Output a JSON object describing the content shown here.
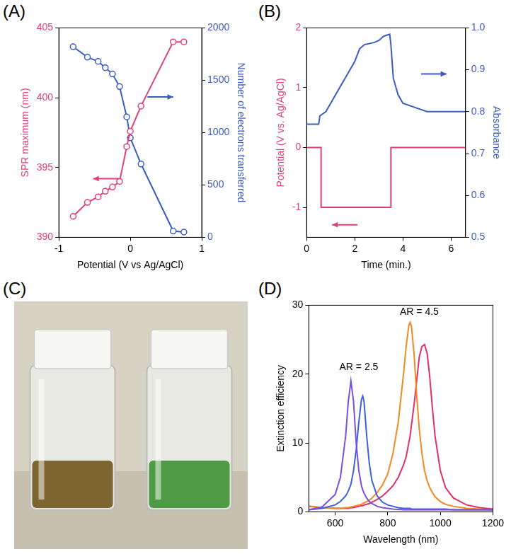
{
  "chart_data": [
    {
      "type": "line",
      "title": "(A)",
      "x_label": "Potential (V vs Ag/AgCl)",
      "y_label": "SPR maximum (nm)",
      "y2_label": "Number of electrons transferred",
      "x": [
        -0.8,
        -0.6,
        -0.45,
        -0.35,
        -0.25,
        -0.15,
        -0.05,
        0,
        0.15,
        0.6,
        0.75
      ],
      "xlim": [
        -1,
        1
      ],
      "xticks": [
        -1,
        0,
        1
      ],
      "ylim": [
        390,
        405
      ],
      "yticks": [
        390,
        395,
        400,
        405
      ],
      "y2lim": [
        0,
        2000
      ],
      "y2ticks": [
        0,
        500,
        1000,
        1500,
        2000
      ],
      "grid": false,
      "series": [
        {
          "color": "#e0407a",
          "marker": "circle",
          "values": [
            391.5,
            392.5,
            392.9,
            393.3,
            393.6,
            394,
            396.5,
            397.6,
            399.4,
            404,
            404
          ]
        },
        {
          "color": "#3c5bbf",
          "marker": "circle",
          "axis": "y2",
          "values": [
            1820,
            1720,
            1680,
            1620,
            1560,
            1440,
            1150,
            950,
            700,
            60,
            50
          ]
        }
      ]
    },
    {
      "type": "line",
      "title": "(B)",
      "x_label": "Time (min.)",
      "y_label": "Potential (V vs. Ag/AgCl)",
      "y2_label": "Absorbance",
      "xlim": [
        0,
        6.6
      ],
      "xticks": [
        0,
        2,
        4,
        6
      ],
      "ylim": [
        -1.5,
        2
      ],
      "yticks": [
        -1,
        0,
        1,
        2
      ],
      "y2lim": [
        0.5,
        1
      ],
      "y2ticks": [
        0.5,
        0.6,
        0.7,
        0.8,
        0.9,
        {
          "value": 1,
          "label": "1.0"
        }
      ],
      "grid": false,
      "series": [
        {
          "color": "#e0407a",
          "marker": "none",
          "line_style": "solid",
          "x": [
            0,
            0.6,
            0.6,
            3.5,
            3.5,
            6.6
          ],
          "values": [
            0,
            0,
            -1,
            -1,
            0,
            0
          ]
        },
        {
          "color": "#3c5bbf",
          "marker": "none",
          "line_style": "solid",
          "axis": "y2",
          "x": [
            0,
            0.5,
            0.55,
            0.8,
            1.2,
            1.6,
            2.0,
            2.2,
            2.4,
            2.8,
            3.0,
            3.2,
            3.45,
            3.5,
            3.6,
            3.8,
            4.0,
            4.5,
            5.0,
            6.6
          ],
          "values": [
            0.77,
            0.77,
            0.79,
            0.8,
            0.84,
            0.88,
            0.92,
            0.95,
            0.96,
            0.965,
            0.97,
            0.98,
            0.985,
            0.96,
            0.88,
            0.84,
            0.82,
            0.81,
            0.8,
            0.8
          ]
        }
      ]
    },
    {
      "type": "line",
      "title": "(D)",
      "x_label": "Wavelength (nm)",
      "y_label": "Extinction efficiency",
      "x": [
        500,
        550,
        600,
        620,
        640,
        650,
        660,
        670,
        680,
        690,
        700,
        705,
        710,
        720,
        730,
        740,
        760,
        780,
        800,
        820,
        840,
        860,
        870,
        880,
        885,
        890,
        900,
        910,
        920,
        930,
        940,
        950,
        960,
        970,
        980,
        1000,
        1020,
        1050,
        1100,
        1150,
        1200
      ],
      "xlim": [
        500,
        1200
      ],
      "xticks": [
        600,
        800,
        1000,
        1200
      ],
      "ylim": [
        0,
        30
      ],
      "yticks": [
        0,
        10,
        20,
        30
      ],
      "grid": false,
      "annotations": [
        {
          "text": "AR = 2.5",
          "x": 690,
          "y": 21
        },
        {
          "text": "AR = 4.5",
          "x": 920,
          "y": 29
        }
      ],
      "series": [
        {
          "color": "#7b4fe0",
          "marker": "none",
          "values": [
            0.3,
            0.7,
            2.5,
            5,
            11,
            16,
            19,
            16,
            10,
            6,
            3.8,
            3.2,
            2.7,
            2,
            1.5,
            1.2,
            0.8,
            0.6,
            0.5,
            0.4,
            0.35,
            0.3,
            0.3,
            0.3,
            0.3,
            0.3,
            0.3,
            0.3,
            0.3,
            0.3,
            0.3,
            0.3,
            0.3,
            0.3,
            0.3,
            0.3,
            0.3,
            0.3,
            0.3,
            0.3,
            0.3
          ]
        },
        {
          "color": "#3f5fe0",
          "marker": "none",
          "values": [
            0.3,
            0.5,
            1,
            1.5,
            2.3,
            3,
            4,
            6,
            9,
            13,
            16.3,
            16.8,
            16,
            11,
            7,
            4.5,
            2.3,
            1.4,
            1,
            0.8,
            0.6,
            0.5,
            0.5,
            0.5,
            0.5,
            0.4,
            0.4,
            0.4,
            0.4,
            0.4,
            0.4,
            0.4,
            0.4,
            0.4,
            0.4,
            0.4,
            0.4,
            0.3,
            0.3,
            0.3,
            0.3
          ]
        },
        {
          "color": "#f08a24",
          "marker": "none",
          "values": [
            0.8,
            0.6,
            0.5,
            0.5,
            0.6,
            0.6,
            0.7,
            0.8,
            0.9,
            1,
            1.1,
            1.2,
            1.3,
            1.5,
            1.7,
            2,
            2.8,
            3.9,
            5.5,
            8.5,
            13,
            20,
            24,
            27,
            27.5,
            27,
            23,
            17,
            12,
            8.5,
            6,
            4.5,
            3.5,
            2.8,
            2.2,
            1.5,
            1.1,
            0.8,
            0.5,
            0.4,
            0.3
          ]
        },
        {
          "color": "#e0306a",
          "marker": "none",
          "values": [
            0.8,
            0.6,
            0.5,
            0.5,
            0.5,
            0.5,
            0.6,
            0.6,
            0.7,
            0.8,
            0.9,
            0.9,
            1,
            1.1,
            1.2,
            1.4,
            1.8,
            2.3,
            3,
            3.8,
            5,
            6.8,
            8,
            10,
            11,
            12.5,
            15.5,
            19,
            22.5,
            24,
            24.3,
            23,
            19.5,
            15,
            11,
            6,
            3.5,
            2,
            1,
            0.6,
            0.4
          ]
        }
      ]
    }
  ],
  "photo": {
    "title": "(C)",
    "vials": [
      {
        "color": "#7d6530"
      },
      {
        "color": "#4f9a45"
      }
    ]
  }
}
